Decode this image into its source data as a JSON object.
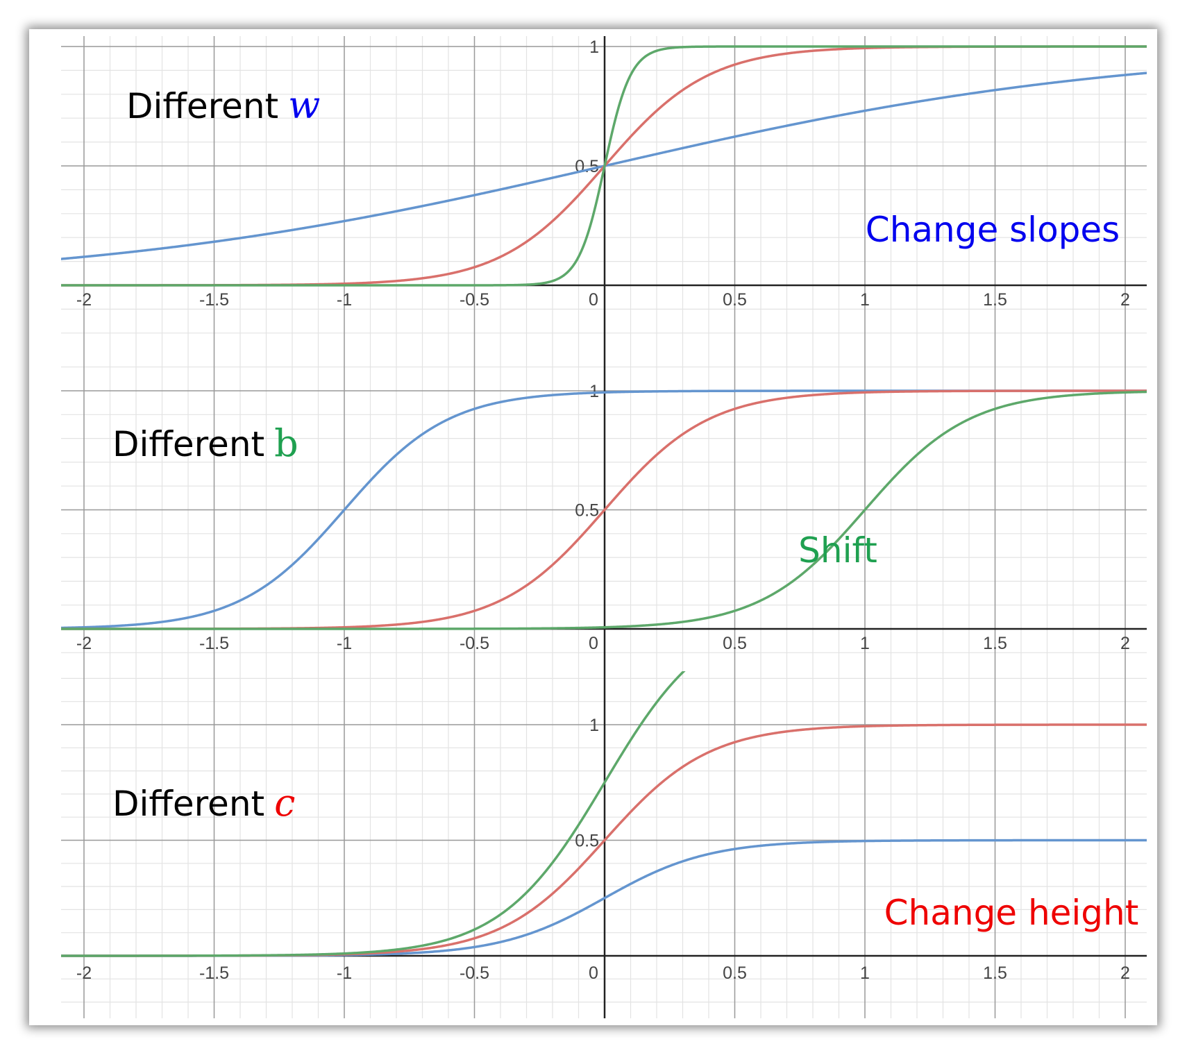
{
  "chart_data": [
    {
      "type": "line",
      "title": "Different",
      "title_variable": "w",
      "title_variable_color": "#0000ee",
      "annotation": "Change slopes",
      "annotation_color": "#0000ee",
      "xlim": [
        -2.1,
        2.1
      ],
      "ylim": [
        -0.15,
        1.05
      ],
      "x_ticks": [
        "-2",
        "-1.5",
        "-1",
        "-0.5",
        "0",
        "0.5",
        "1",
        "1.5",
        "2"
      ],
      "y_ticks": [
        "0.5",
        "1"
      ],
      "grid": true,
      "series": [
        {
          "color": "#6495cf",
          "function": "sigmoid",
          "w": 1,
          "b": 0,
          "c": 1,
          "x": [
            -2.1,
            -1.5,
            -1,
            -0.5,
            0,
            0.5,
            1,
            1.5,
            2.1
          ],
          "values": [
            0.11,
            0.18,
            0.27,
            0.38,
            0.5,
            0.62,
            0.73,
            0.82,
            0.89
          ]
        },
        {
          "color": "#d9706b",
          "function": "sigmoid",
          "w": 5,
          "b": 0,
          "c": 1,
          "x": [
            -2.1,
            -1,
            -0.5,
            0,
            0.5,
            1,
            2.1
          ],
          "values": [
            0.0,
            0.01,
            0.08,
            0.5,
            0.92,
            0.99,
            1.0
          ]
        },
        {
          "color": "#5da86a",
          "function": "sigmoid",
          "w": 20,
          "b": 0,
          "c": 1,
          "x": [
            -2.1,
            -0.2,
            0,
            0.2,
            2.1
          ],
          "values": [
            0.0,
            0.02,
            0.5,
            0.98,
            1.0
          ]
        }
      ]
    },
    {
      "type": "line",
      "title": "Different",
      "title_variable": "b",
      "title_variable_color": "#1fa050",
      "annotation": "Shift",
      "annotation_color": "#1fa050",
      "xlim": [
        -2.1,
        2.1
      ],
      "ylim": [
        -0.15,
        1.05
      ],
      "x_ticks": [
        "-2",
        "-1.5",
        "-1",
        "-0.5",
        "0",
        "0.5",
        "1",
        "1.5",
        "2"
      ],
      "y_ticks": [
        "0.5",
        "1"
      ],
      "grid": true,
      "series": [
        {
          "color": "#6495cf",
          "function": "sigmoid",
          "w": 5,
          "b": 5,
          "c": 1,
          "x": [
            -2.1,
            -1.5,
            -1,
            -0.5,
            0,
            2.1
          ],
          "values": [
            0.0,
            0.08,
            0.5,
            0.92,
            0.99,
            1.0
          ]
        },
        {
          "color": "#d9706b",
          "function": "sigmoid",
          "w": 5,
          "b": 0,
          "c": 1,
          "x": [
            -2.1,
            -0.5,
            0,
            0.5,
            1,
            2.1
          ],
          "values": [
            0.0,
            0.08,
            0.5,
            0.92,
            0.99,
            1.0
          ]
        },
        {
          "color": "#5da86a",
          "function": "sigmoid",
          "w": 5,
          "b": -5,
          "c": 1,
          "x": [
            -2.1,
            0,
            0.5,
            1,
            1.5,
            2.1
          ],
          "values": [
            0.0,
            0.01,
            0.08,
            0.5,
            0.92,
            0.99
          ]
        }
      ]
    },
    {
      "type": "line",
      "title": "Different",
      "title_variable": "c",
      "title_variable_color": "#ee0000",
      "annotation": "Change height",
      "annotation_color": "#ee0000",
      "xlim": [
        -2.1,
        2.1
      ],
      "ylim": [
        -0.05,
        1.05
      ],
      "x_ticks": [
        "-2",
        "-1.5",
        "-1",
        "-0.5",
        "0",
        "0.5",
        "1",
        "1.5",
        "2"
      ],
      "y_ticks": [
        "0.5",
        "1"
      ],
      "grid": true,
      "series": [
        {
          "color": "#6495cf",
          "function": "sigmoid",
          "w": 5,
          "b": 0,
          "c": 0.5,
          "x": [
            -2.1,
            -0.5,
            0,
            0.5,
            1,
            2.1
          ],
          "values": [
            0.0,
            0.04,
            0.25,
            0.46,
            0.5,
            0.5
          ]
        },
        {
          "color": "#d9706b",
          "function": "sigmoid",
          "w": 5,
          "b": 0,
          "c": 1,
          "x": [
            -2.1,
            -0.5,
            0,
            0.5,
            1,
            2.1
          ],
          "values": [
            0.0,
            0.08,
            0.5,
            0.92,
            0.99,
            1.0
          ]
        },
        {
          "color": "#5da86a",
          "function": "sigmoid",
          "w": 5,
          "b": 0,
          "c": 1.5,
          "x": [
            -2.1,
            -0.5,
            0,
            0.15
          ],
          "values": [
            0.0,
            0.11,
            0.75,
            1.04
          ]
        }
      ]
    }
  ]
}
